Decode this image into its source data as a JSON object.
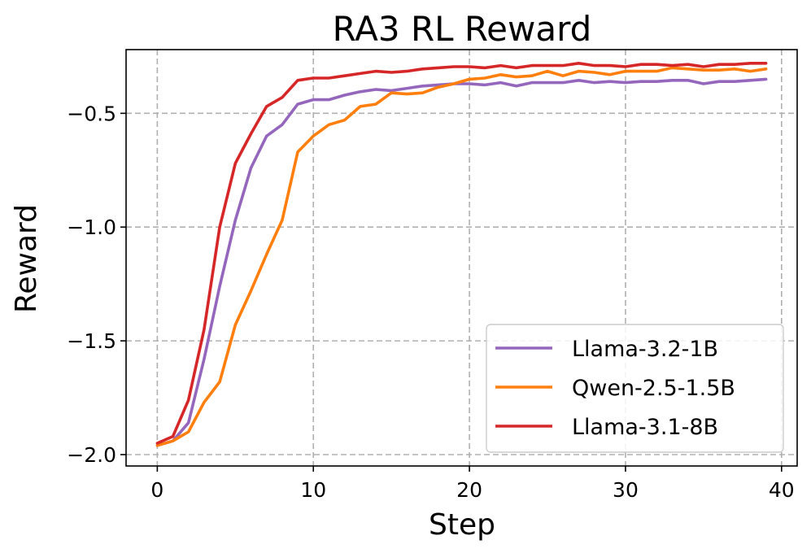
{
  "chart_data": {
    "type": "line",
    "title": "RA3 RL Reward",
    "xlabel": "Step",
    "ylabel": "Reward",
    "xlim": [
      -2,
      41
    ],
    "ylim": [
      -2.05,
      -0.22
    ],
    "xticks": [
      0,
      10,
      20,
      30,
      40
    ],
    "xtick_labels": [
      "0",
      "10",
      "20",
      "30",
      "40"
    ],
    "yticks": [
      -2.0,
      -1.5,
      -1.0,
      -0.5
    ],
    "ytick_labels": [
      "−2.0",
      "−1.5",
      "−1.0",
      "−0.5"
    ],
    "grid": true,
    "legend_position": "lower-right",
    "x": [
      0,
      1,
      2,
      3,
      4,
      5,
      6,
      7,
      8,
      9,
      10,
      11,
      12,
      13,
      14,
      15,
      16,
      17,
      18,
      19,
      20,
      21,
      22,
      23,
      24,
      25,
      26,
      27,
      28,
      29,
      30,
      31,
      32,
      33,
      34,
      35,
      36,
      37,
      38,
      39
    ],
    "series": [
      {
        "name": "Llama-3.2-1B",
        "color": "#9467bd",
        "values": [
          -1.96,
          -1.94,
          -1.86,
          -1.58,
          -1.26,
          -0.97,
          -0.74,
          -0.6,
          -0.55,
          -0.46,
          -0.44,
          -0.44,
          -0.42,
          -0.405,
          -0.395,
          -0.4,
          -0.39,
          -0.38,
          -0.375,
          -0.37,
          -0.37,
          -0.375,
          -0.365,
          -0.38,
          -0.365,
          -0.365,
          -0.365,
          -0.355,
          -0.365,
          -0.36,
          -0.365,
          -0.36,
          -0.36,
          -0.355,
          -0.355,
          -0.37,
          -0.36,
          -0.36,
          -0.355,
          -0.35
        ]
      },
      {
        "name": "Qwen-2.5-1.5B",
        "color": "#ff7f0e",
        "values": [
          -1.96,
          -1.94,
          -1.9,
          -1.77,
          -1.68,
          -1.43,
          -1.28,
          -1.12,
          -0.97,
          -0.67,
          -0.6,
          -0.55,
          -0.53,
          -0.47,
          -0.46,
          -0.41,
          -0.415,
          -0.41,
          -0.385,
          -0.37,
          -0.35,
          -0.345,
          -0.33,
          -0.34,
          -0.335,
          -0.315,
          -0.335,
          -0.315,
          -0.32,
          -0.33,
          -0.315,
          -0.315,
          -0.315,
          -0.3,
          -0.305,
          -0.31,
          -0.31,
          -0.305,
          -0.315,
          -0.305
        ]
      },
      {
        "name": "Llama-3.1-8B",
        "color": "#d62728",
        "values": [
          -1.95,
          -1.92,
          -1.76,
          -1.45,
          -1.0,
          -0.72,
          -0.59,
          -0.47,
          -0.43,
          -0.355,
          -0.345,
          -0.345,
          -0.335,
          -0.325,
          -0.315,
          -0.32,
          -0.315,
          -0.305,
          -0.3,
          -0.295,
          -0.295,
          -0.3,
          -0.29,
          -0.3,
          -0.29,
          -0.29,
          -0.29,
          -0.28,
          -0.29,
          -0.29,
          -0.295,
          -0.285,
          -0.285,
          -0.29,
          -0.285,
          -0.295,
          -0.285,
          -0.285,
          -0.28,
          -0.28
        ]
      }
    ]
  }
}
